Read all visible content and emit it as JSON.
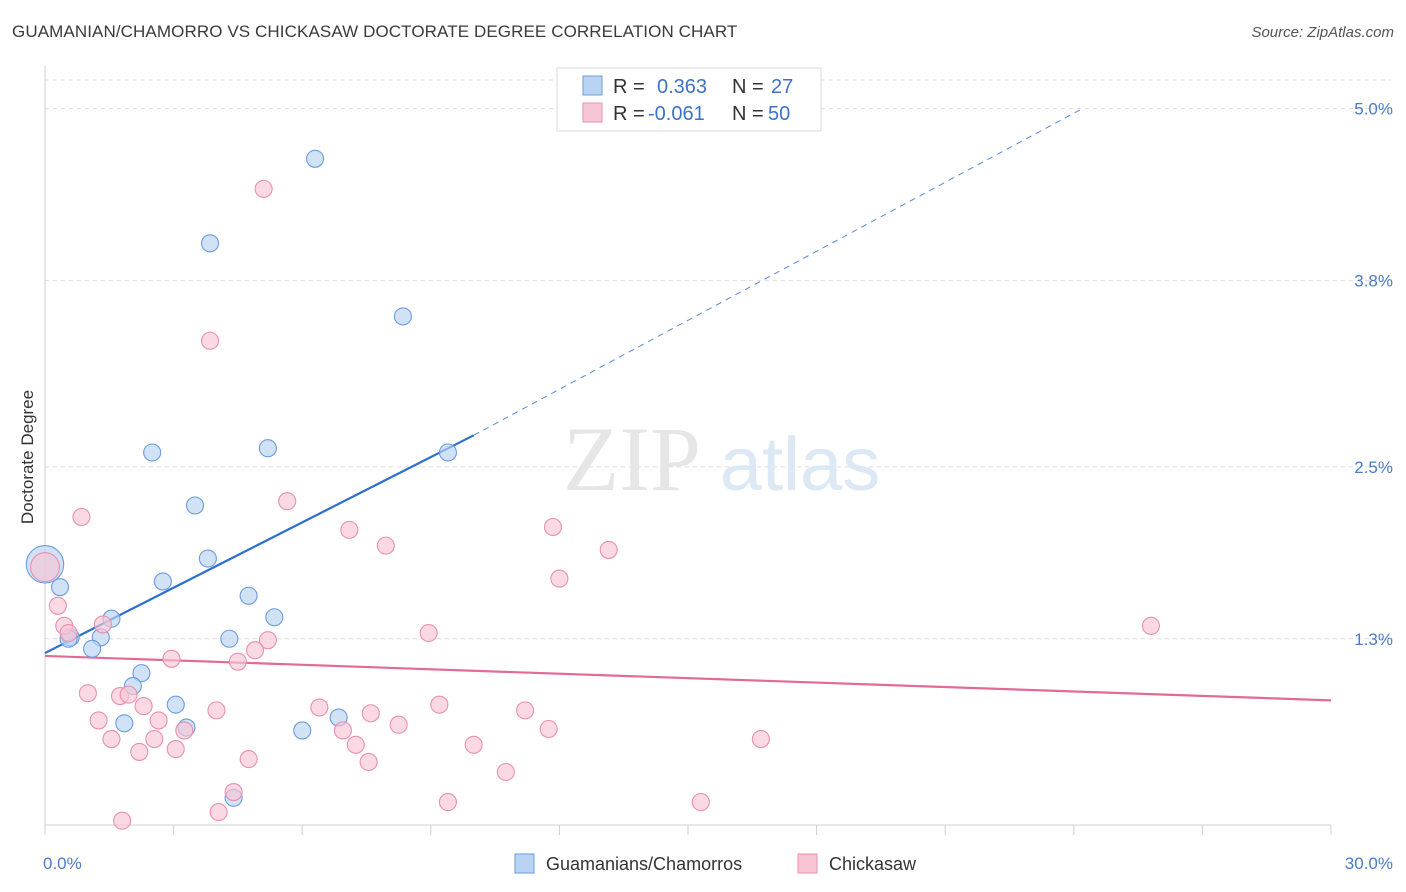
{
  "header": {
    "title": "GUAMANIAN/CHAMORRO VS CHICKASAW DOCTORATE DEGREE CORRELATION CHART",
    "source": "Source: ZipAtlas.com"
  },
  "watermark": {
    "zip": "ZIP",
    "atlas": "atlas"
  },
  "colors": {
    "blue_fill": "#b9d3f2",
    "blue_stroke": "#6b9be0",
    "blue_line": "#2c6fce",
    "pink_fill": "#f8c5d5",
    "pink_stroke": "#e890ad",
    "pink_line": "#e36a96",
    "grid": "#dcdcdc",
    "tick_label": "#4a7cc9"
  },
  "stats_legend": {
    "r_label": "R =",
    "n_label": "N =",
    "rows": [
      {
        "series": "Guamanians/Chamorros",
        "r": "0.363",
        "n": "27"
      },
      {
        "series": "Chickasaw",
        "r": "-0.061",
        "n": "50"
      }
    ]
  },
  "chart_data": {
    "type": "scatter",
    "title": "GUAMANIAN/CHAMORRO VS CHICKASAW DOCTORATE DEGREE CORRELATION CHART",
    "xlabel": "",
    "ylabel": "Doctorate Degree",
    "xlim": [
      0,
      30
    ],
    "ylim": [
      0,
      5.2
    ],
    "x_tick_labels": [
      "0.0%",
      "30.0%"
    ],
    "y_ticks": [
      1.3,
      2.5,
      3.8,
      5.0
    ],
    "y_tick_labels": [
      "1.3%",
      "2.5%",
      "3.8%",
      "5.0%"
    ],
    "grid": true,
    "legend_position": "bottom",
    "series": [
      {
        "name": "Guamanians/Chamorros",
        "points": [
          [
            6.3,
            4.65
          ],
          [
            3.85,
            4.06
          ],
          [
            8.35,
            3.55
          ],
          [
            2.5,
            2.6
          ],
          [
            5.2,
            2.63
          ],
          [
            9.4,
            2.6
          ],
          [
            3.5,
            2.23
          ],
          [
            3.8,
            1.86
          ],
          [
            2.75,
            1.7
          ],
          [
            4.75,
            1.6
          ],
          [
            0.35,
            1.66
          ],
          [
            0.0,
            1.82
          ],
          [
            1.55,
            1.44
          ],
          [
            5.35,
            1.45
          ],
          [
            0.6,
            1.31
          ],
          [
            1.3,
            1.31
          ],
          [
            4.3,
            1.3
          ],
          [
            1.1,
            1.23
          ],
          [
            0.55,
            1.3
          ],
          [
            2.25,
            1.06
          ],
          [
            2.05,
            0.97
          ],
          [
            3.05,
            0.84
          ],
          [
            1.85,
            0.71
          ],
          [
            3.3,
            0.68
          ],
          [
            6.85,
            0.75
          ],
          [
            6.0,
            0.66
          ],
          [
            4.4,
            0.19
          ]
        ],
        "sizes": [
          1,
          1,
          1,
          1,
          1,
          1,
          1,
          1,
          1,
          1,
          1,
          2.2,
          1,
          1,
          1,
          1,
          1,
          1,
          1,
          1,
          1,
          1,
          1,
          1,
          1,
          1,
          1
        ],
        "trend": {
          "x0": 0,
          "y0": 1.2,
          "x1": 10.0,
          "y1": 2.72,
          "dash_to_x": 24.2,
          "dash_to_y": 5.0
        }
      },
      {
        "name": "Chickasaw",
        "points": [
          [
            5.1,
            4.44
          ],
          [
            3.85,
            3.38
          ],
          [
            0.85,
            2.15
          ],
          [
            5.65,
            2.26
          ],
          [
            7.1,
            2.06
          ],
          [
            7.95,
            1.95
          ],
          [
            11.85,
            2.08
          ],
          [
            13.15,
            1.92
          ],
          [
            12.0,
            1.72
          ],
          [
            25.8,
            1.39
          ],
          [
            0.0,
            1.8
          ],
          [
            0.3,
            1.53
          ],
          [
            0.45,
            1.39
          ],
          [
            0.55,
            1.34
          ],
          [
            1.35,
            1.4
          ],
          [
            8.95,
            1.34
          ],
          [
            5.2,
            1.29
          ],
          [
            4.9,
            1.22
          ],
          [
            2.95,
            1.16
          ],
          [
            4.5,
            1.14
          ],
          [
            1.0,
            0.92
          ],
          [
            1.75,
            0.9
          ],
          [
            1.95,
            0.91
          ],
          [
            2.3,
            0.83
          ],
          [
            4.0,
            0.8
          ],
          [
            6.4,
            0.82
          ],
          [
            7.6,
            0.78
          ],
          [
            9.2,
            0.84
          ],
          [
            11.2,
            0.8
          ],
          [
            1.25,
            0.73
          ],
          [
            2.65,
            0.73
          ],
          [
            3.25,
            0.66
          ],
          [
            6.95,
            0.66
          ],
          [
            8.25,
            0.7
          ],
          [
            11.75,
            0.67
          ],
          [
            1.55,
            0.6
          ],
          [
            2.55,
            0.6
          ],
          [
            7.25,
            0.56
          ],
          [
            10.0,
            0.56
          ],
          [
            16.7,
            0.6
          ],
          [
            2.2,
            0.51
          ],
          [
            3.05,
            0.53
          ],
          [
            4.75,
            0.46
          ],
          [
            7.55,
            0.44
          ],
          [
            10.75,
            0.37
          ],
          [
            4.4,
            0.23
          ],
          [
            9.4,
            0.16
          ],
          [
            15.3,
            0.16
          ],
          [
            4.05,
            0.09
          ],
          [
            1.8,
            0.03
          ]
        ],
        "sizes": [
          1,
          1,
          1,
          1,
          1,
          1,
          1,
          1,
          1,
          1,
          1.7,
          1,
          1,
          1,
          1,
          1,
          1,
          1,
          1,
          1,
          1,
          1,
          1,
          1,
          1,
          1,
          1,
          1,
          1,
          1,
          1,
          1,
          1,
          1,
          1,
          1,
          1,
          1,
          1,
          1,
          1,
          1,
          1,
          1,
          1,
          1,
          1,
          1,
          1,
          1
        ],
        "trend": {
          "x0": 0,
          "y0": 1.18,
          "x1": 30.0,
          "y1": 0.87
        }
      }
    ]
  }
}
